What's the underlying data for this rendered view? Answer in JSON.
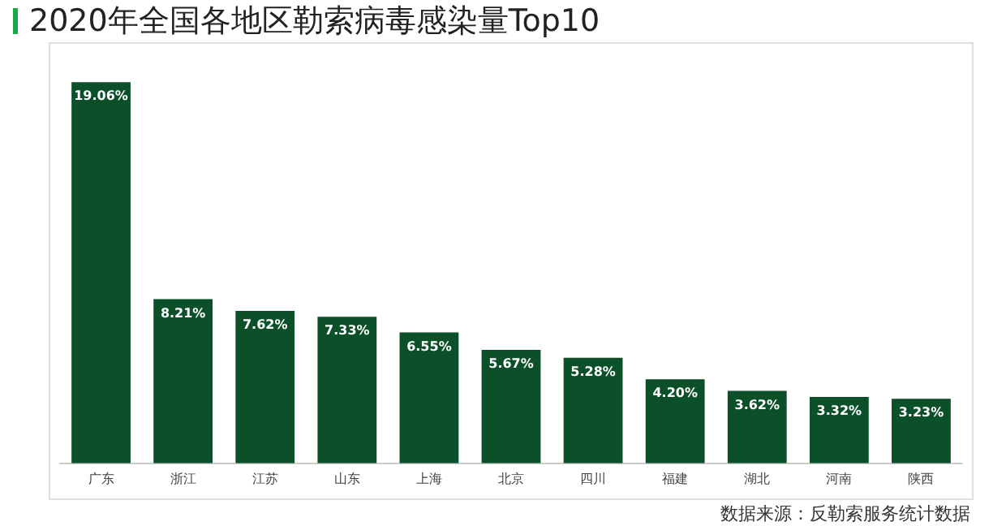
{
  "chart_data": {
    "type": "bar",
    "title": "2020年全国各地区勒索病毒感染量Top10",
    "categories": [
      "广东",
      "浙江",
      "江苏",
      "山东",
      "上海",
      "北京",
      "四川",
      "福建",
      "湖北",
      "河南",
      "陕西"
    ],
    "values": [
      19.06,
      8.21,
      7.62,
      7.33,
      6.55,
      5.67,
      5.28,
      4.2,
      3.62,
      3.32,
      3.23
    ],
    "value_labels": [
      "19.06%",
      "8.21%",
      "7.62%",
      "7.33%",
      "6.55%",
      "5.67%",
      "5.28%",
      "4.20%",
      "3.62%",
      "3.32%",
      "3.23%"
    ],
    "color": "#0b5028",
    "grid": false,
    "legend": false,
    "annotations": [
      "数据来源：反勒索服务统计数据"
    ]
  }
}
